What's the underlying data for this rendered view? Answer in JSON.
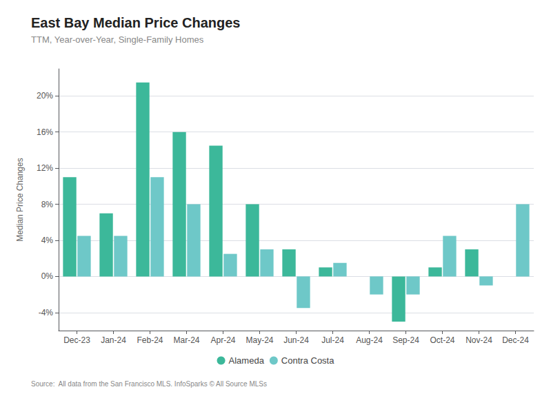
{
  "chart_data": {
    "type": "bar",
    "title": "East Bay Median Price Changes",
    "subtitle": "TTM, Year-over-Year, Single-Family Homes",
    "ylabel": "Median Price Changes",
    "annotations": [
      "Source:  All data from the San Francisco MLS. InfoSparks © All Source MLSs"
    ],
    "categories": [
      "Dec-23",
      "Jan-24",
      "Feb-24",
      "Mar-24",
      "Apr-24",
      "May-24",
      "Jun-24",
      "Jul-24",
      "Aug-24",
      "Sep-24",
      "Oct-24",
      "Nov-24",
      "Dec-24"
    ],
    "series": [
      {
        "name": "Alameda",
        "color": "#3cb89a",
        "values": [
          11.0,
          7.0,
          21.5,
          16.0,
          14.5,
          8.0,
          3.0,
          1.0,
          0.0,
          -5.0,
          1.0,
          3.0,
          0.0
        ]
      },
      {
        "name": "Contra Costa",
        "color": "#6ec8c8",
        "values": [
          4.5,
          4.5,
          11.0,
          8.0,
          2.5,
          3.0,
          -3.5,
          1.5,
          -2.0,
          -2.0,
          4.5,
          -1.0,
          8.0
        ]
      }
    ],
    "ylim": [
      -6,
      23
    ],
    "yticks": [
      {
        "value": -4,
        "label": "-4%"
      },
      {
        "value": 0,
        "label": "0%"
      },
      {
        "value": 4,
        "label": "4%"
      },
      {
        "value": 8,
        "label": "8%"
      },
      {
        "value": 12,
        "label": "12%"
      },
      {
        "value": 16,
        "label": "16%"
      },
      {
        "value": 20,
        "label": "20%"
      }
    ],
    "grid": true,
    "legend": "bottom"
  }
}
